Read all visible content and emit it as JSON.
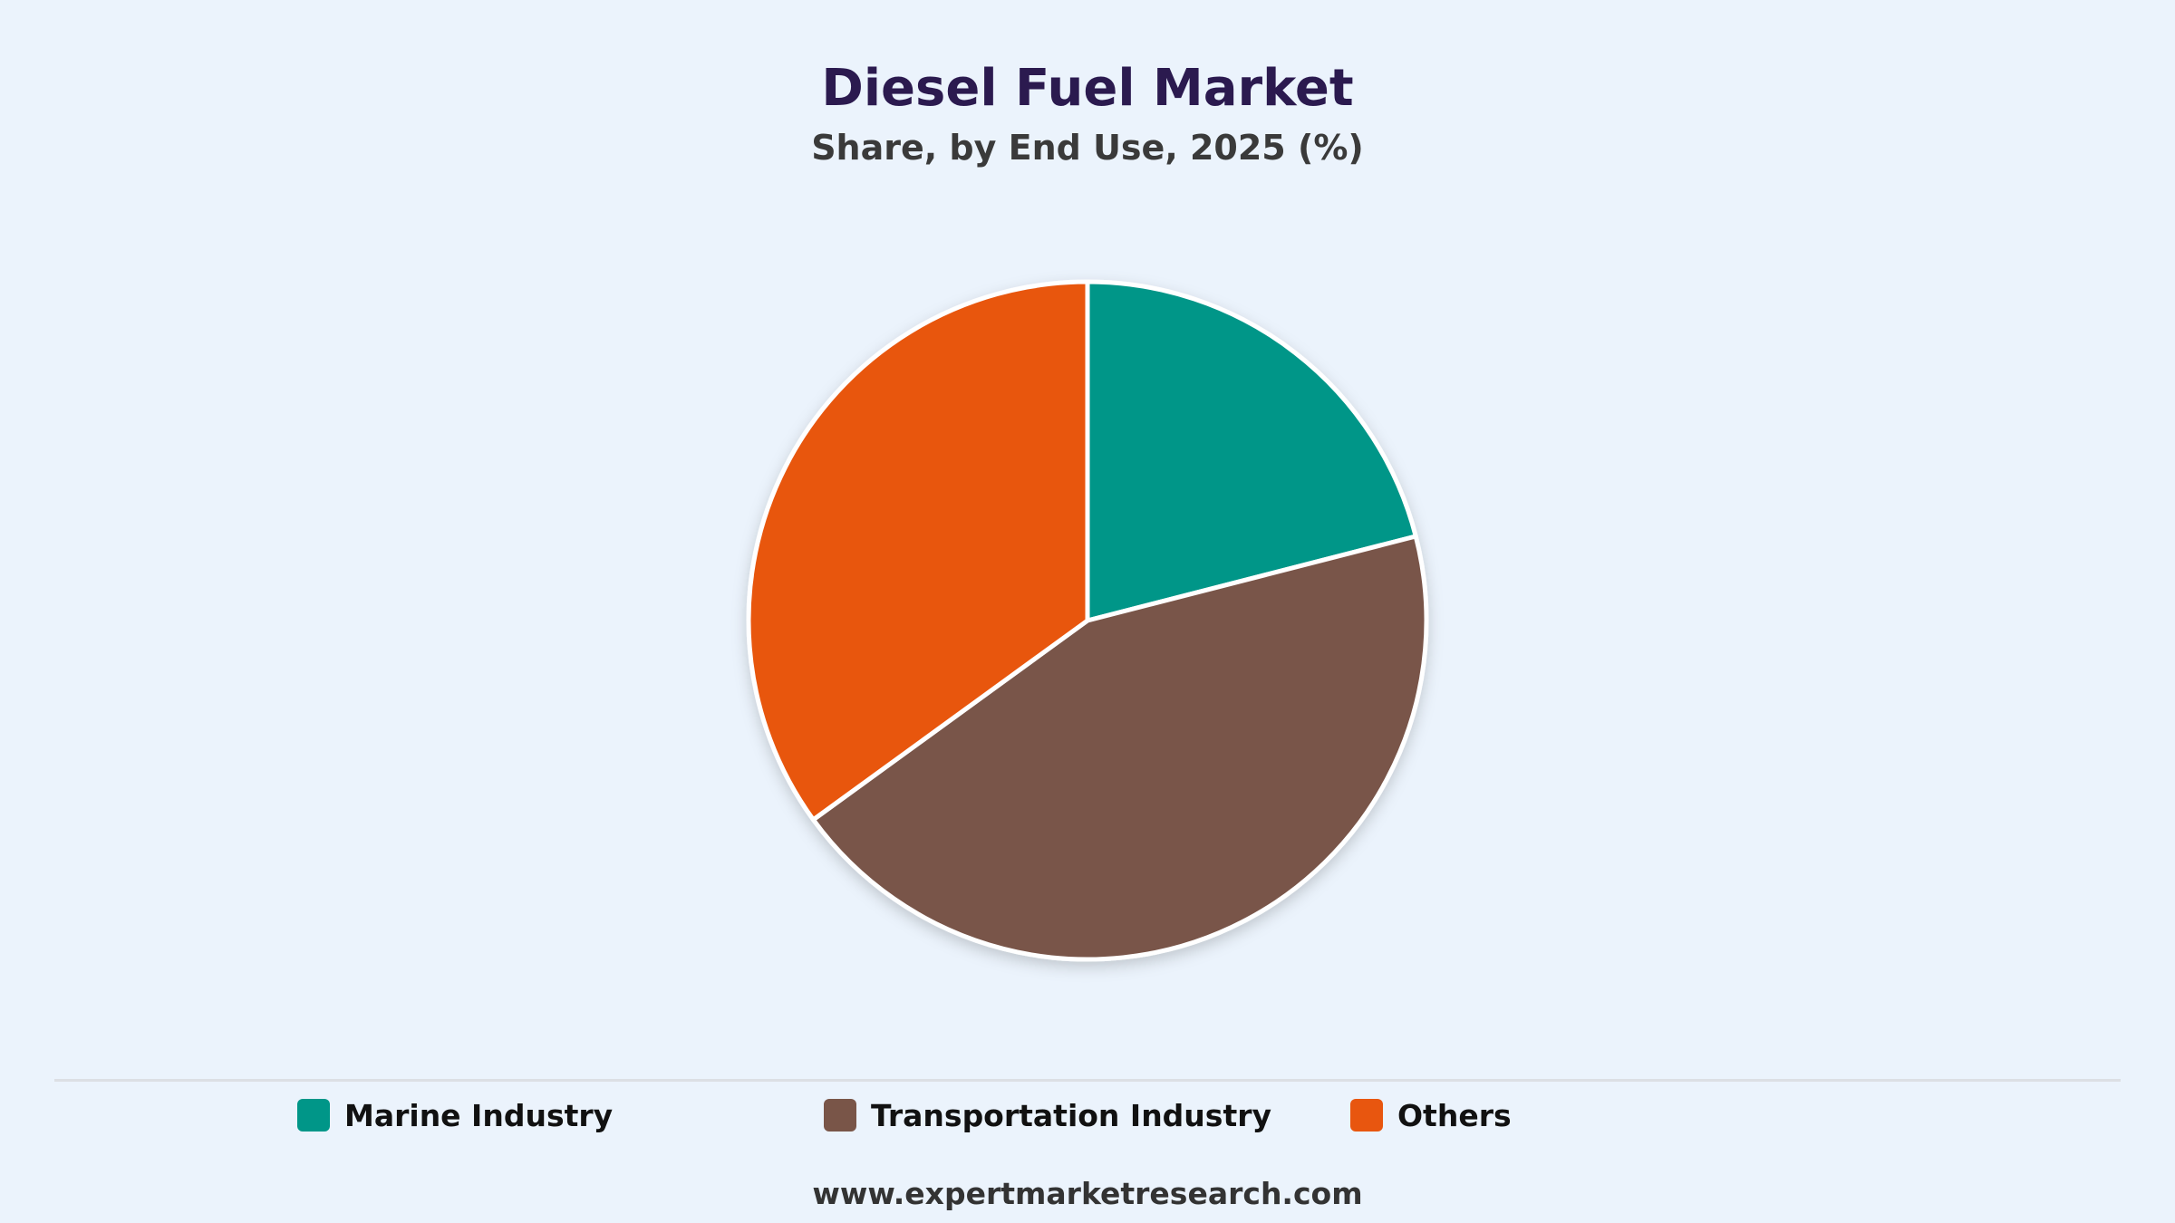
{
  "chart_data": {
    "type": "pie",
    "title": "Diesel Fuel Market",
    "subtitle": "Share, by End Use, 2025 (%)",
    "slices": [
      {
        "name": "Marine Industry",
        "value": 21,
        "color": "#009688"
      },
      {
        "name": "Transportation Industry",
        "value": 44,
        "color": "#795548"
      },
      {
        "name": "Others",
        "value": 35,
        "color": "#e8560f"
      }
    ],
    "legend_position": "bottom"
  },
  "footer": {
    "source": "www.expertmarketresearch.com"
  }
}
